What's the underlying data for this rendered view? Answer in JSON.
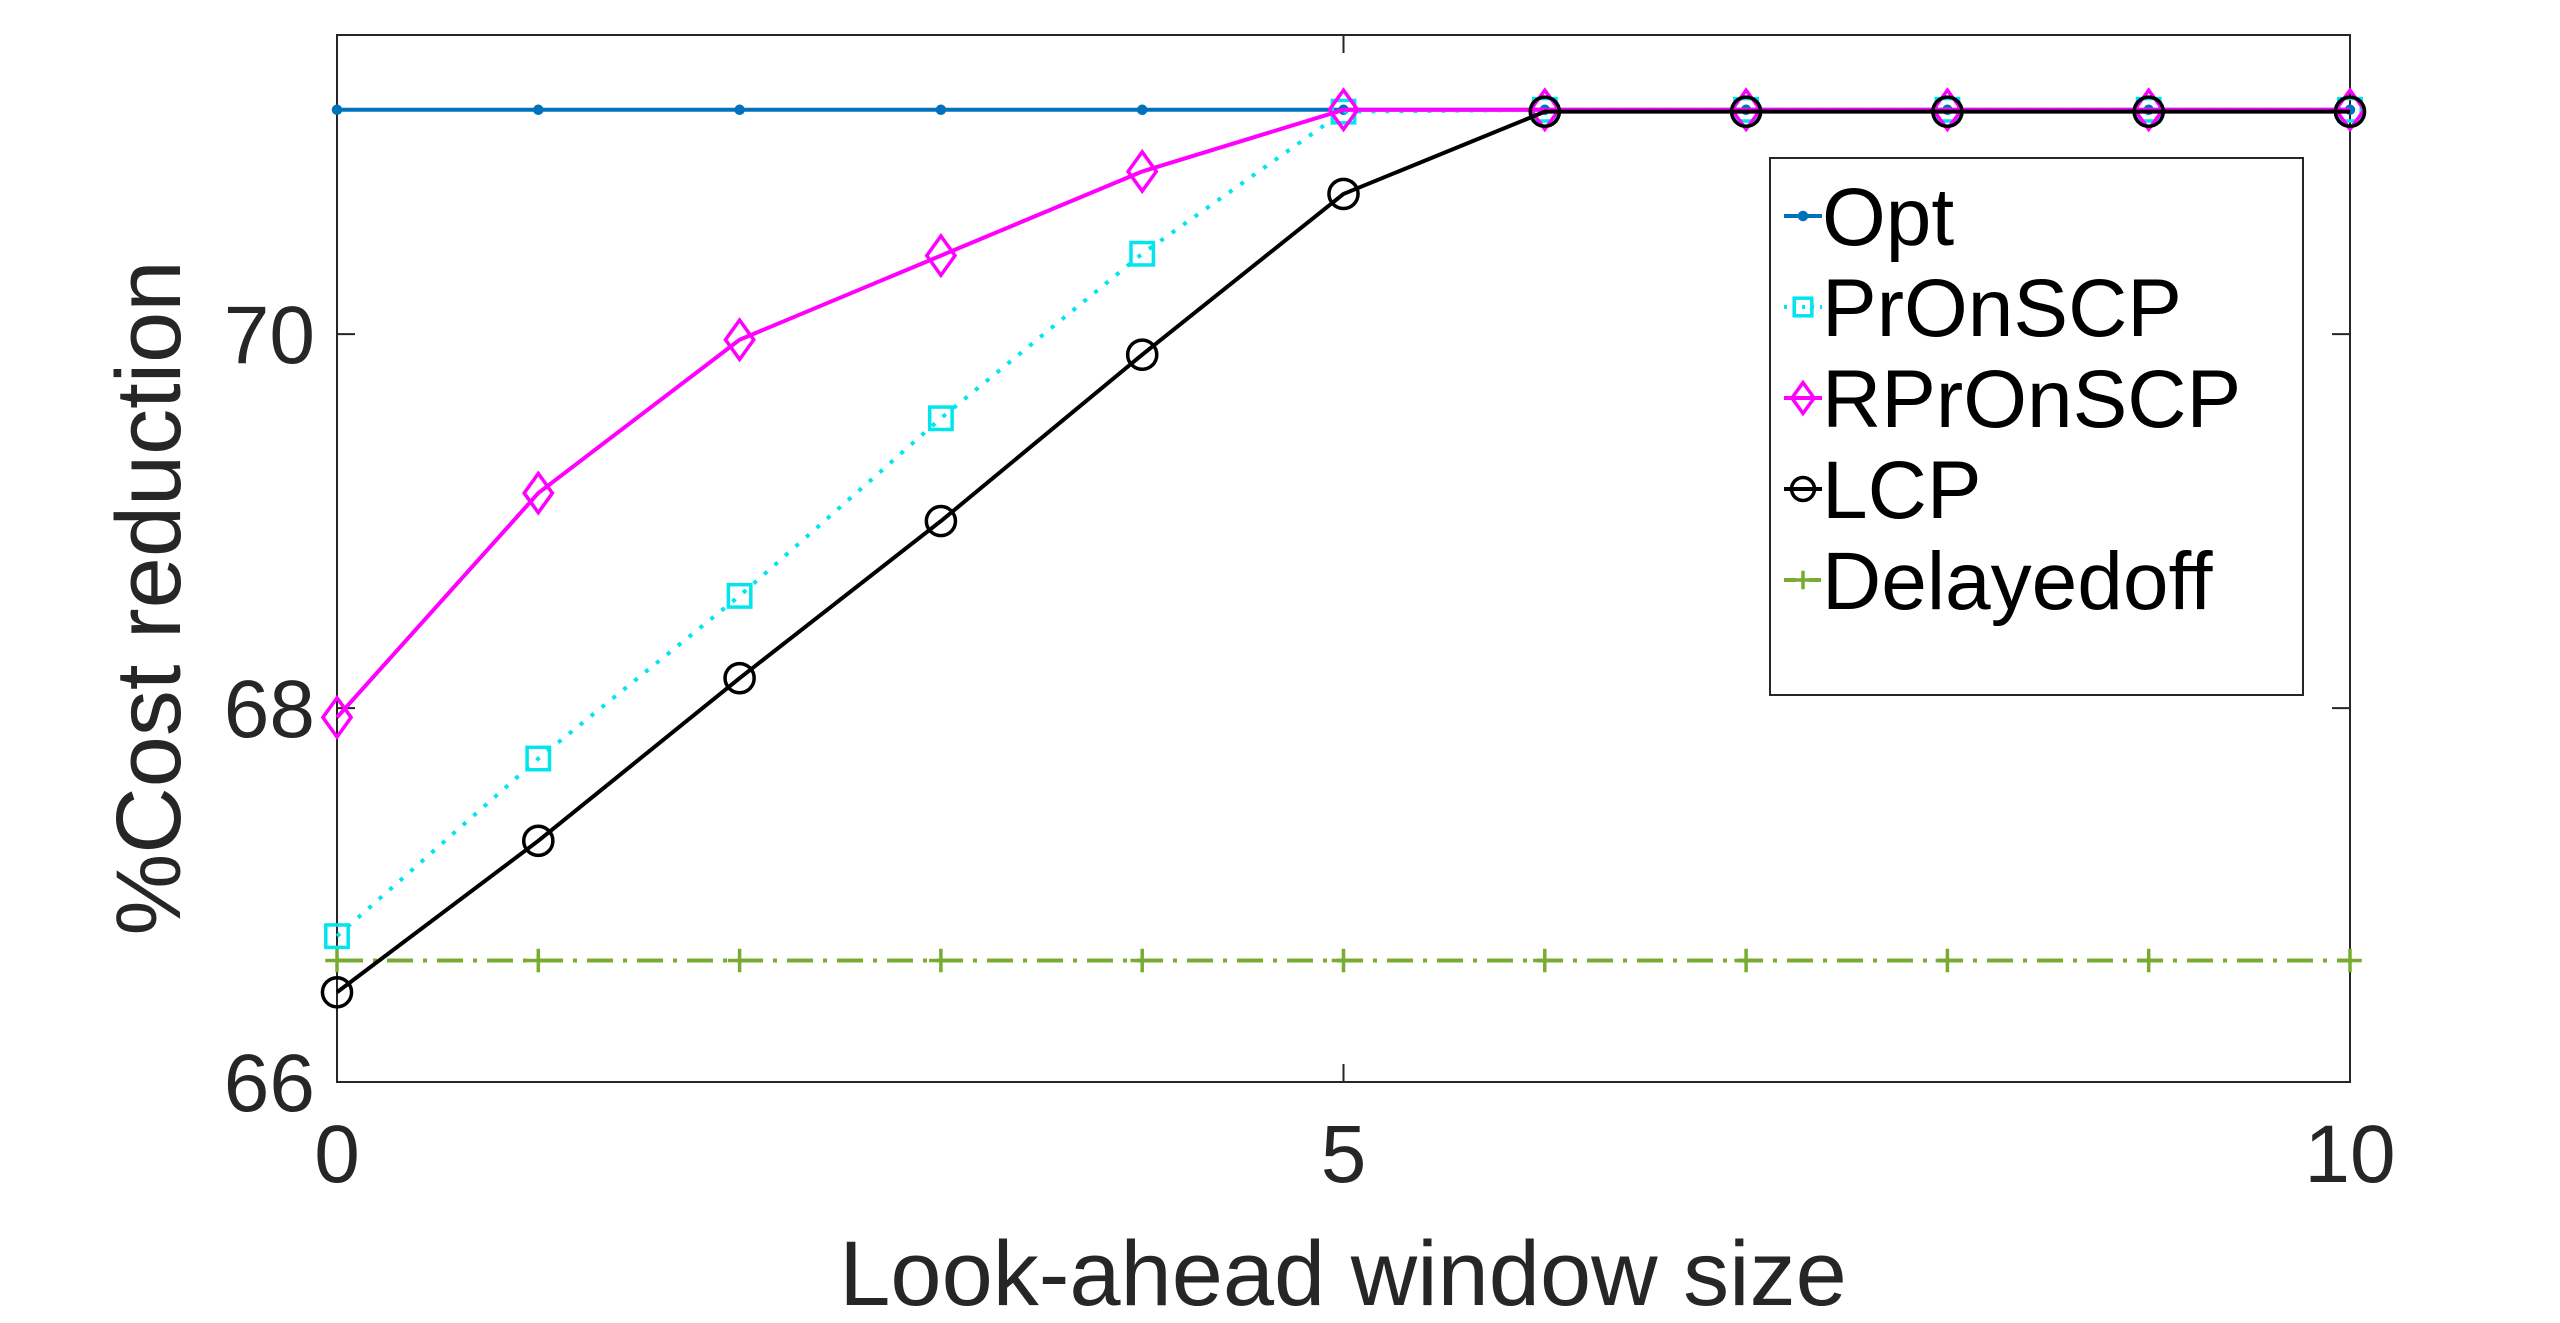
{
  "chart_data": {
    "type": "line",
    "xlabel": "Look-ahead window size",
    "ylabel": "%Cost reduction",
    "xlim": [
      0,
      10
    ],
    "ylim": [
      66,
      71.6
    ],
    "xticks": [
      0,
      5,
      10
    ],
    "yticks": [
      66,
      68,
      70
    ],
    "x": [
      0,
      1,
      2,
      3,
      4,
      5,
      6,
      7,
      8,
      9,
      10
    ],
    "grid": false,
    "legend_position": "top-right",
    "series": [
      {
        "name": "Opt",
        "color": "#0072BD",
        "marker": "point",
        "line_style": "solid",
        "values": [
          71.2,
          71.2,
          71.2,
          71.2,
          71.2,
          71.2,
          71.2,
          71.2,
          71.2,
          71.2,
          71.2
        ]
      },
      {
        "name": "PrOnSCP",
        "color": "#00E5EE",
        "marker": "square",
        "line_style": "dotted",
        "values": [
          66.78,
          67.73,
          68.6,
          69.55,
          70.43,
          71.19,
          71.2,
          71.2,
          71.2,
          71.2,
          71.2
        ]
      },
      {
        "name": "RPrOnSCP",
        "color": "#FF00FF",
        "marker": "diamond",
        "line_style": "solid",
        "values": [
          67.95,
          69.15,
          69.97,
          70.42,
          70.87,
          71.2,
          71.2,
          71.2,
          71.2,
          71.2,
          71.2
        ]
      },
      {
        "name": "LCP",
        "color": "#000000",
        "marker": "circle",
        "line_style": "solid",
        "values": [
          66.48,
          67.29,
          68.16,
          69.0,
          69.89,
          70.75,
          71.19,
          71.19,
          71.19,
          71.19,
          71.19
        ]
      },
      {
        "name": "Delayedoff",
        "color": "#77AC30",
        "marker": "plus",
        "line_style": "dashdot",
        "values": [
          66.65,
          66.65,
          66.65,
          66.65,
          66.65,
          66.65,
          66.65,
          66.65,
          66.65,
          66.65,
          66.65
        ]
      }
    ]
  }
}
